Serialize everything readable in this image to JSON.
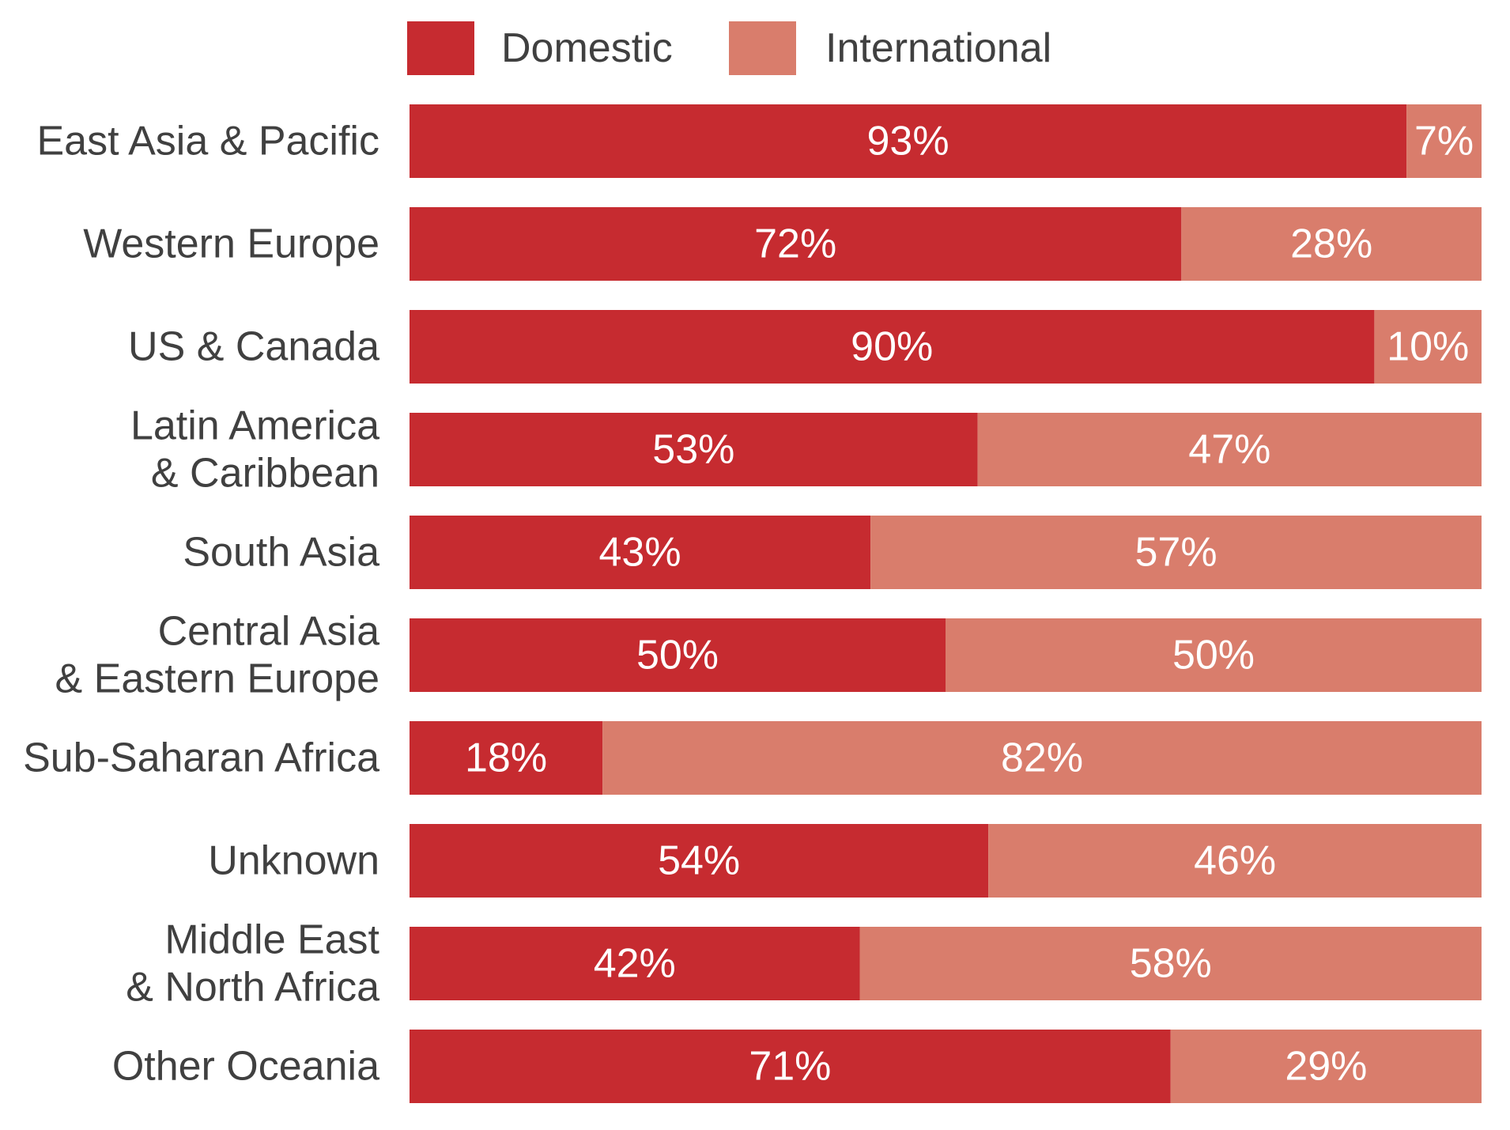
{
  "chart_data": {
    "type": "bar",
    "orientation": "horizontal",
    "stacked": true,
    "title": "",
    "xlabel": "",
    "ylabel": "",
    "xlim": [
      0,
      100
    ],
    "grid": false,
    "legend_position": "top",
    "categories": [
      [
        "East Asia & Pacific"
      ],
      [
        "Western Europe"
      ],
      [
        "US & Canada"
      ],
      [
        "Latin America",
        "& Caribbean"
      ],
      [
        "South Asia"
      ],
      [
        "Central Asia",
        "& Eastern Europe"
      ],
      [
        "Sub-Saharan Africa"
      ],
      [
        "Unknown"
      ],
      [
        "Middle East",
        "& North Africa"
      ],
      [
        "Other Oceania"
      ]
    ],
    "series": [
      {
        "name": "Domestic",
        "color": "#c62b30",
        "values": [
          93,
          72,
          90,
          53,
          43,
          50,
          18,
          54,
          42,
          71
        ],
        "labels": [
          "93%",
          "72%",
          "90%",
          "53%",
          "43%",
          "50%",
          "18%",
          "54%",
          "42%",
          "71%"
        ]
      },
      {
        "name": "International",
        "color": "#d97d6c",
        "values": [
          7,
          28,
          10,
          47,
          57,
          50,
          82,
          46,
          58,
          29
        ],
        "labels": [
          "7%",
          "28%",
          "10%",
          "47%",
          "57%",
          "50%",
          "82%",
          "46%",
          "58%",
          "29%"
        ]
      }
    ]
  }
}
